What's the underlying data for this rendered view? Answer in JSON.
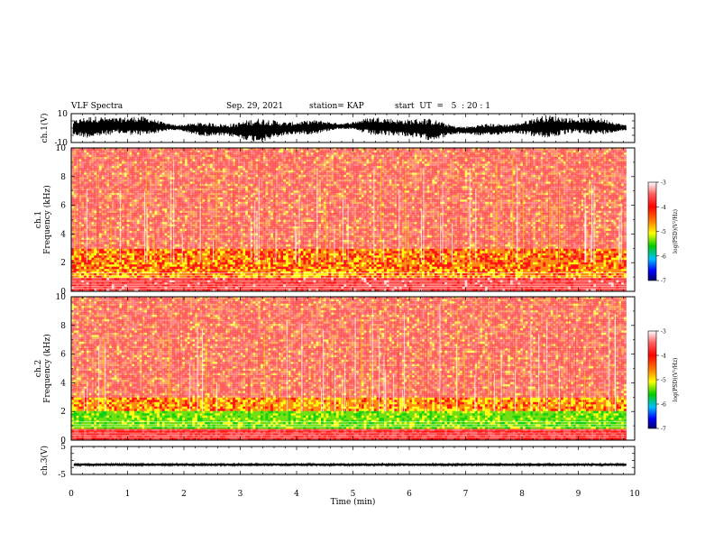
{
  "header": {
    "title": "VLF Spectra",
    "date": "Sep. 29, 2021",
    "station": "station= KAP",
    "start": "start  UT  =   5  : 20 : 1"
  },
  "chart_data": [
    {
      "type": "line",
      "panel": "waveform-ch1",
      "ylabel": "ch.1(V)",
      "ylim": [
        -10,
        10
      ],
      "yticks": [
        "10",
        "-10"
      ],
      "x_range_min": [
        0,
        9.85
      ],
      "description_of_signal": "dense oscillation filling roughly -7 to +7 V"
    },
    {
      "type": "heatmap",
      "panel": "spectrogram-ch1",
      "ylabel": "ch.1 Frequency  (kHz)",
      "xlim": [
        0,
        10
      ],
      "ylim": [
        0,
        10
      ],
      "yticks": [
        "0",
        "2",
        "4",
        "6",
        "8",
        "10"
      ],
      "data_extent_min": [
        0,
        9.85
      ],
      "colorbar": {
        "label": "log(PSD)(V²/Hz)",
        "ticks": [
          "-3",
          "-4",
          "-5",
          "-6",
          "-7"
        ],
        "range": [
          -7,
          -3
        ]
      },
      "intensity_profile_by_khz": [
        {
          "khz": [
            0,
            1
          ],
          "level": -3.6
        },
        {
          "khz": [
            1,
            1.6
          ],
          "level": -4.4
        },
        {
          "khz": [
            1.6,
            3
          ],
          "level": -4.3
        },
        {
          "khz": [
            3,
            10
          ],
          "level": -4.0
        }
      ]
    },
    {
      "type": "heatmap",
      "panel": "spectrogram-ch2",
      "ylabel": "ch.2 Frequency  (kHz)",
      "xlim": [
        0,
        10
      ],
      "ylim": [
        0,
        10
      ],
      "yticks": [
        "0",
        "2",
        "4",
        "6",
        "8",
        "10"
      ],
      "data_extent_min": [
        0,
        9.85
      ],
      "colorbar": {
        "label": "log(PSD)(V²/Hz)",
        "ticks": [
          "-3",
          "-4",
          "-5",
          "-6",
          "-7"
        ],
        "range": [
          -7,
          -3
        ]
      },
      "intensity_profile_by_khz": [
        {
          "khz": [
            0,
            0.8
          ],
          "level": -3.8
        },
        {
          "khz": [
            0.8,
            2
          ],
          "level": -5.0
        },
        {
          "khz": [
            2,
            3
          ],
          "level": -4.4
        },
        {
          "khz": [
            3,
            10
          ],
          "level": -4.0
        }
      ]
    },
    {
      "type": "line",
      "panel": "waveform-ch3",
      "ylabel": "ch.3(V)",
      "ylim": [
        -5,
        5
      ],
      "yticks": [
        "5",
        "-5"
      ],
      "x_range_min": [
        0,
        9.85
      ],
      "signal_level_v": -1.5,
      "xlabel": "Time  (min)",
      "xticks": [
        "0",
        "1",
        "2",
        "3",
        "4",
        "5",
        "6",
        "7",
        "8",
        "9",
        "10"
      ],
      "xlim": [
        0,
        10
      ]
    }
  ],
  "colors": {
    "background": "#ffffff",
    "axes": "#000000",
    "colormap": [
      "#ff0000",
      "#ff8000",
      "#ffff00",
      "#00cc00",
      "#00c0ff",
      "#0000ff",
      "#00006a"
    ]
  }
}
